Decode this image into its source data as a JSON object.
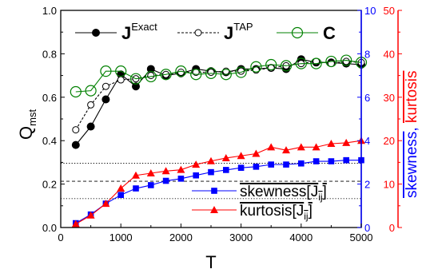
{
  "chart_data": {
    "type": "line",
    "x": [
      250,
      500,
      750,
      1000,
      1250,
      1500,
      1750,
      2000,
      2250,
      2500,
      2750,
      3000,
      3250,
      3500,
      3750,
      4000,
      4250,
      4500,
      4750,
      5000
    ],
    "xlim": [
      0,
      5000
    ],
    "xticks": [
      0,
      1000,
      2000,
      3000,
      4000,
      5000
    ],
    "xticklabels": [
      "0",
      "1000",
      "2000",
      "3000",
      "4000",
      "5000"
    ],
    "xlabel": "T",
    "left_axis": {
      "label": "Q",
      "label_sub": "mst",
      "ylim": [
        0,
        1.0
      ],
      "ticks": [
        0.0,
        0.2,
        0.4,
        0.6,
        0.8,
        1.0
      ],
      "ticklabels": [
        "0.0",
        "0.2",
        "0.4",
        "0.6",
        "0.8",
        "1.0"
      ],
      "color": "#000000"
    },
    "right_axis_blue": {
      "label_part1": "skewness",
      "label_part2": ",",
      "ylim": [
        0,
        10
      ],
      "ticks": [
        0,
        2,
        4,
        6,
        8,
        10
      ],
      "ticklabels": [
        "0",
        "2",
        "4",
        "6",
        "8",
        "10"
      ],
      "color": "#0000ff"
    },
    "right_axis_red": {
      "label": "kurtosis",
      "ylim": [
        0,
        50
      ],
      "ticks": [
        0,
        10,
        20,
        30,
        40,
        50
      ],
      "ticklabels": [
        "0",
        "10",
        "20",
        "30",
        "40",
        "50"
      ],
      "color": "#ff0000"
    },
    "series": [
      {
        "name": "J",
        "superscript": "Exact",
        "axis": "left",
        "color": "#000000",
        "marker": "filled-circle",
        "line": "solid",
        "values": [
          0.38,
          0.465,
          0.59,
          0.705,
          0.65,
          0.73,
          0.7,
          0.71,
          0.73,
          0.72,
          0.715,
          0.73,
          0.73,
          0.735,
          0.73,
          0.775,
          0.76,
          0.76,
          0.755,
          0.75
        ]
      },
      {
        "name": "J",
        "superscript": "TAP",
        "axis": "left",
        "color": "#000000",
        "marker": "open-circle-small",
        "line": "dashed",
        "values": [
          0.45,
          0.565,
          0.65,
          0.68,
          0.685,
          0.7,
          0.705,
          0.715,
          0.715,
          0.715,
          0.72,
          0.72,
          0.725,
          0.735,
          0.745,
          0.755,
          0.765,
          0.755,
          0.765,
          0.76
        ]
      },
      {
        "name": "C",
        "superscript": "",
        "axis": "left",
        "color": "#008000",
        "marker": "open-circle-large",
        "line": "solid",
        "values": [
          0.625,
          0.63,
          0.72,
          0.72,
          0.685,
          0.695,
          0.705,
          0.72,
          0.705,
          0.71,
          0.705,
          0.715,
          0.74,
          0.75,
          0.745,
          0.755,
          0.755,
          0.765,
          0.77,
          0.76
        ]
      },
      {
        "name": "skewness[J",
        "subscript": "ij",
        "suffix": "]",
        "axis": "right_blue",
        "color": "#0000ff",
        "marker": "filled-square",
        "line": "solid",
        "values": [
          0.2,
          0.6,
          1.1,
          1.5,
          1.8,
          1.95,
          2.15,
          2.25,
          2.4,
          2.55,
          2.65,
          2.75,
          2.8,
          2.9,
          2.9,
          2.95,
          3.05,
          3.05,
          3.1,
          3.1
        ]
      },
      {
        "name": "kurtosis[J",
        "subscript": "ij",
        "suffix": "]",
        "axis": "right_red",
        "color": "#ff0000",
        "marker": "filled-triangle",
        "line": "solid",
        "values": [
          0.8,
          2.8,
          5.5,
          9.0,
          12.0,
          12.5,
          13.0,
          13.3,
          14.5,
          15.3,
          16.0,
          16.5,
          17.0,
          18.5,
          17.8,
          18.5,
          18.5,
          19.3,
          19.5,
          20.0
        ]
      }
    ],
    "reference_lines": [
      {
        "axis": "left",
        "value": 0.296,
        "style": "dotted"
      },
      {
        "axis": "left",
        "value": 0.213,
        "style": "dashed"
      },
      {
        "axis": "left",
        "value": 0.133,
        "style": "dotted"
      }
    ],
    "legend_top": "top-left",
    "legend_bottom": "bottom-right",
    "grid": false
  }
}
